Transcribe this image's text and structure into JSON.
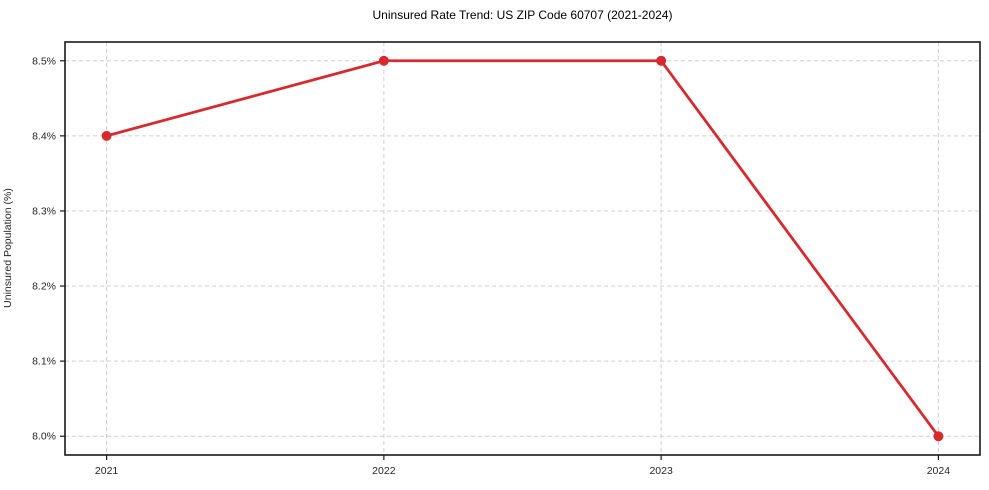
{
  "chart_data": {
    "type": "line",
    "title": "Uninsured Rate Trend: US ZIP Code 60707 (2021-2024)",
    "xlabel": "",
    "ylabel": "Uninsured Population (%)",
    "x": [
      2021,
      2022,
      2023,
      2024
    ],
    "series": [
      {
        "name": "Uninsured Rate",
        "values": [
          8.4,
          8.5,
          8.5,
          8.0
        ]
      }
    ],
    "xticks": [
      2021,
      2022,
      2023,
      2024
    ],
    "xtick_labels": [
      "2021",
      "2022",
      "2023",
      "2024"
    ],
    "yticks": [
      8.0,
      8.1,
      8.2,
      8.3,
      8.4,
      8.5
    ],
    "ytick_labels": [
      "8.0%",
      "8.1%",
      "8.2%",
      "8.3%",
      "8.4%",
      "8.5%"
    ],
    "xlim": [
      2020.85,
      2024.15
    ],
    "ylim": [
      7.975,
      8.525
    ],
    "grid": true,
    "grid_style": "dashed",
    "legend_position": "none",
    "colors": {
      "line": "#d62b2e",
      "marker": "#d62b2e",
      "grid": "#cfcfcf",
      "axis": "#1a1a1a",
      "tick_text": "#262626",
      "title_text": "#000000",
      "background": "#ffffff"
    }
  }
}
